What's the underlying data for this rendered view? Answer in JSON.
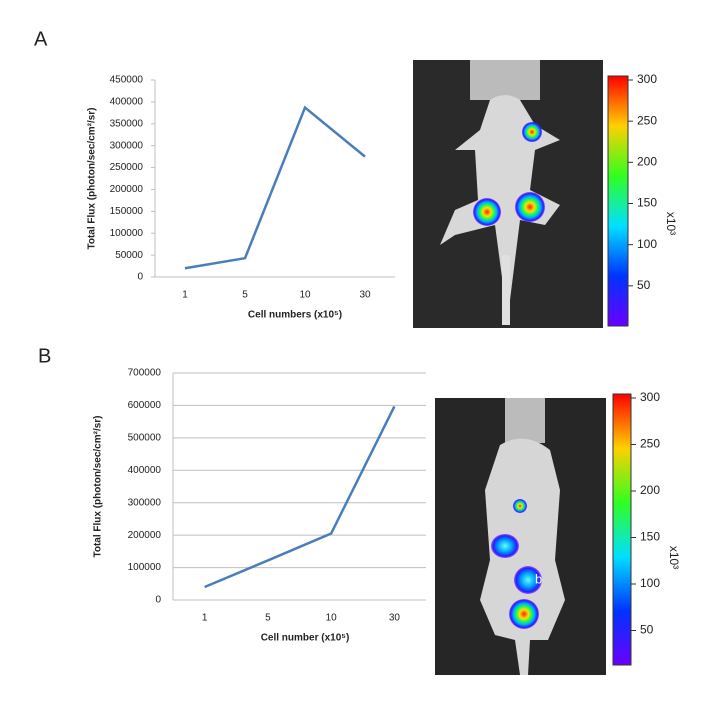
{
  "chart_data": [
    {
      "type": "line",
      "panel": "A",
      "title": null,
      "x_label": "Cell numbers (x10⁵)",
      "y_label": "Total Flux (photon/sec/cm²/sr)",
      "categories": [
        "1",
        "5",
        "10",
        "30"
      ],
      "series": [
        {
          "name": null,
          "color": "#4a7ebb",
          "values": [
            20000,
            43000,
            387000,
            275000
          ]
        }
      ],
      "ylim": [
        0,
        450000
      ],
      "yticks": [
        0,
        50000,
        100000,
        150000,
        200000,
        250000,
        300000,
        350000,
        400000,
        450000
      ],
      "grid": false
    },
    {
      "type": "line",
      "panel": "B",
      "title": null,
      "x_label": "Cell number (x10⁵)",
      "y_label": "Total Flux (photon/sec/cm²/sr)",
      "categories": [
        "1",
        "5",
        "10",
        "30"
      ],
      "series": [
        {
          "name": null,
          "color": "#4a7ebb",
          "values": [
            40000,
            122000,
            205000,
            597000
          ]
        }
      ],
      "ylim": [
        0,
        700000
      ],
      "yticks": [
        0,
        100000,
        200000,
        300000,
        400000,
        500000,
        600000,
        700000
      ],
      "grid": true
    }
  ],
  "colorbars": [
    {
      "lim": [
        0,
        300
      ],
      "ticks": [
        50,
        100,
        150,
        200,
        250,
        300
      ],
      "unit": "x10³"
    },
    {
      "lim": [
        0,
        300
      ],
      "ticks": [
        50,
        100,
        150,
        200,
        250,
        300
      ],
      "unit": "x10³"
    }
  ],
  "image_b_label": "b"
}
